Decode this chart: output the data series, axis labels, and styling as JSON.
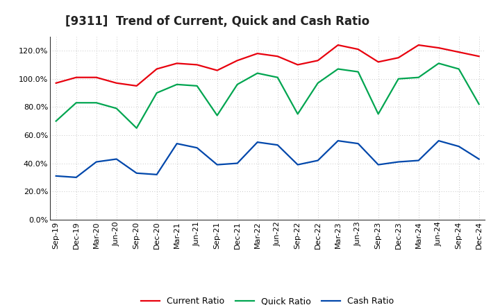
{
  "title": "[9311]  Trend of Current, Quick and Cash Ratio",
  "labels": [
    "Sep-19",
    "Dec-19",
    "Mar-20",
    "Jun-20",
    "Sep-20",
    "Dec-20",
    "Mar-21",
    "Jun-21",
    "Sep-21",
    "Dec-21",
    "Mar-22",
    "Jun-22",
    "Sep-22",
    "Dec-22",
    "Mar-23",
    "Jun-23",
    "Sep-23",
    "Dec-23",
    "Mar-24",
    "Jun-24",
    "Sep-24",
    "Dec-24"
  ],
  "current_ratio": [
    97,
    101,
    101,
    97,
    95,
    107,
    111,
    110,
    106,
    113,
    118,
    116,
    110,
    113,
    124,
    121,
    112,
    115,
    124,
    122,
    119,
    116
  ],
  "quick_ratio": [
    70,
    83,
    83,
    79,
    65,
    90,
    96,
    95,
    74,
    96,
    104,
    101,
    75,
    97,
    107,
    105,
    75,
    100,
    101,
    111,
    107,
    82
  ],
  "cash_ratio": [
    31,
    30,
    41,
    43,
    33,
    32,
    54,
    51,
    39,
    40,
    55,
    53,
    39,
    42,
    56,
    54,
    39,
    41,
    42,
    56,
    52,
    43
  ],
  "current_color": "#e8000d",
  "quick_color": "#00a550",
  "cash_color": "#0047ab",
  "background_color": "#ffffff",
  "plot_bg_color": "#ffffff",
  "ylim": [
    0,
    130
  ],
  "yticks": [
    0,
    20,
    40,
    60,
    80,
    100,
    120
  ],
  "grid_color": "#b0b0b0",
  "title_fontsize": 12,
  "legend_fontsize": 9,
  "tick_fontsize": 8,
  "line_width": 1.6
}
